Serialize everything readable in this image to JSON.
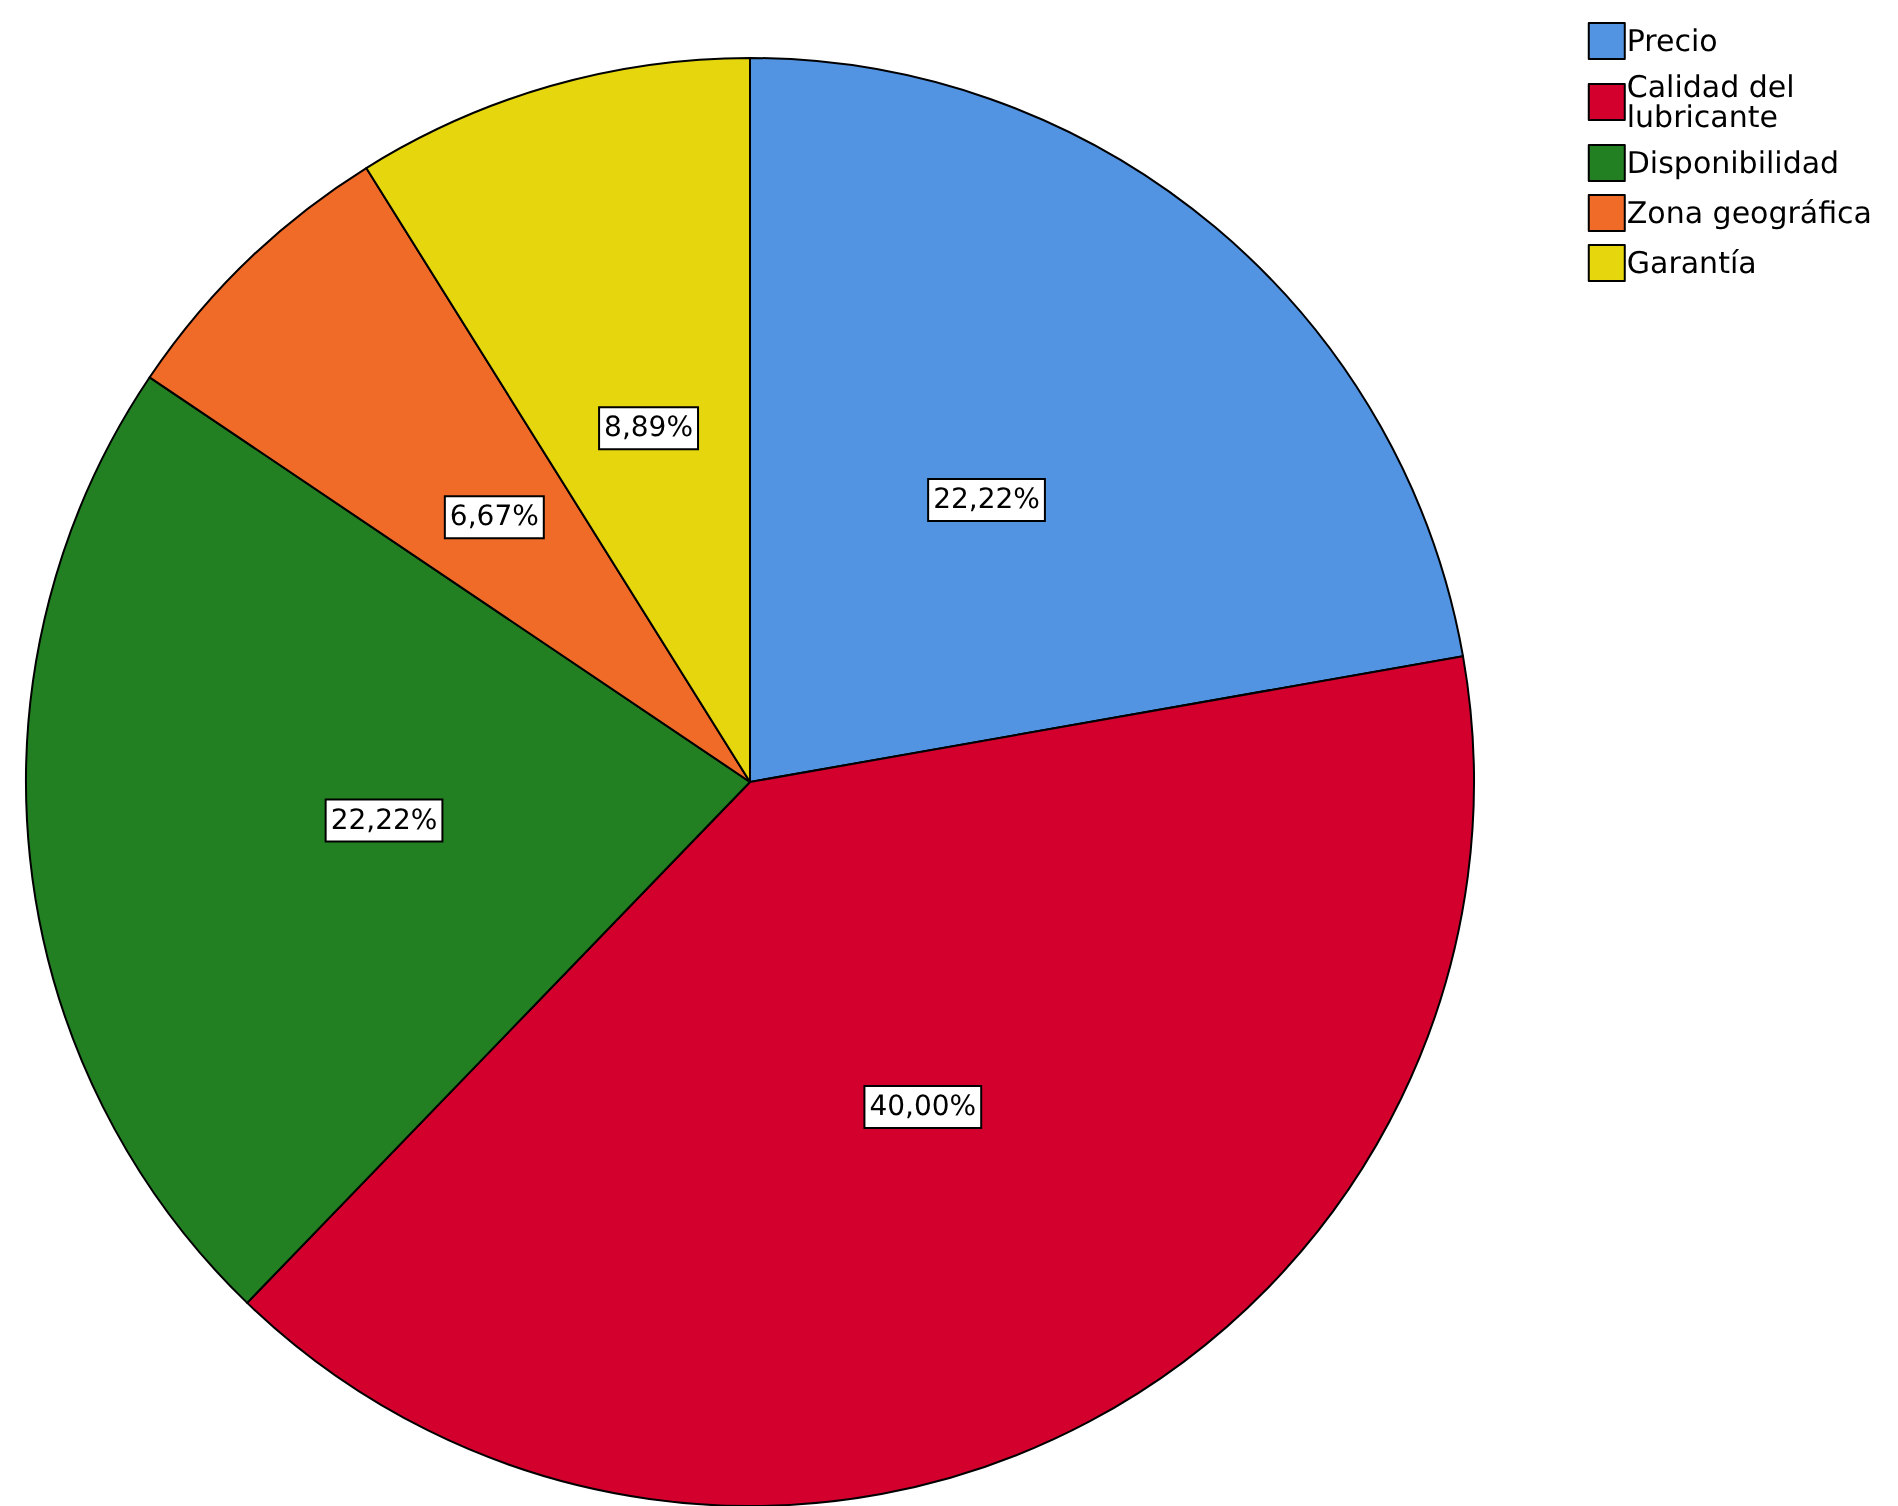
{
  "chart_data": {
    "type": "pie",
    "categories": [
      "Precio",
      "Calidad del lubricante",
      "Disponibilidad",
      "Zona geográfica",
      "Garantía"
    ],
    "values": [
      22.22,
      40.0,
      22.22,
      6.67,
      8.89
    ],
    "value_labels": [
      "22,22%",
      "40,00%",
      "22,22%",
      "6,67%",
      "8,89%"
    ],
    "colors": [
      "#5294e2",
      "#d3002e",
      "#238022",
      "#f06a28",
      "#e5d60d"
    ],
    "legend": "top right"
  }
}
